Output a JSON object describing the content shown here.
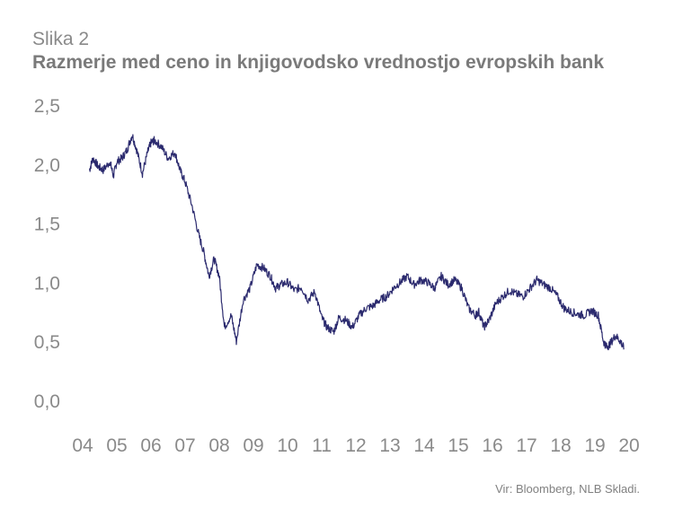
{
  "figure_label": "Slika 2",
  "source": "Vir: Bloomberg, NLB Skladi.",
  "chart_data": {
    "type": "line",
    "title": "Razmerje med ceno in knjigovodsko vrednostjo evropskih bank",
    "xlabel": "",
    "ylabel": "",
    "ylim": [
      0,
      2.5
    ],
    "y_ticks": [
      "0,0",
      "0,5",
      "1,0",
      "1,5",
      "2,0",
      "2,5"
    ],
    "x_ticks": [
      "04",
      "05",
      "06",
      "07",
      "08",
      "09",
      "10",
      "11",
      "12",
      "13",
      "14",
      "15",
      "16",
      "17",
      "18",
      "19",
      "20"
    ],
    "x_range": [
      2004,
      2020
    ],
    "grid": false,
    "line_color": "#2b2a6e",
    "series": [
      {
        "x": [
          2004.2,
          2004.3,
          2004.45,
          2004.6,
          2004.8,
          2004.9,
          2005.0,
          2005.15,
          2005.3,
          2005.45,
          2005.6,
          2005.75,
          2005.9,
          2006.0,
          2006.1,
          2006.3,
          2006.5,
          2006.7,
          2006.85,
          2007.0,
          2007.2,
          2007.4,
          2007.55,
          2007.7,
          2007.85,
          2008.0,
          2008.15,
          2008.35,
          2008.5,
          2008.7,
          2008.9,
          2009.1,
          2009.3,
          2009.5,
          2009.65,
          2009.8,
          2010.0,
          2010.2,
          2010.4,
          2010.6,
          2010.8,
          2011.0,
          2011.15,
          2011.35,
          2011.5,
          2011.7,
          2011.9,
          2012.1,
          2012.3,
          2012.5,
          2012.7,
          2012.9,
          2013.1,
          2013.3,
          2013.5,
          2013.7,
          2013.9,
          2014.1,
          2014.3,
          2014.5,
          2014.7,
          2014.9,
          2015.1,
          2015.3,
          2015.5,
          2015.6,
          2015.75,
          2015.9,
          2016.1,
          2016.3,
          2016.5,
          2016.7,
          2016.9,
          2017.1,
          2017.3,
          2017.5,
          2017.7,
          2017.9,
          2018.1,
          2018.3,
          2018.5,
          2018.7,
          2018.9,
          2019.1,
          2019.25,
          2019.35,
          2019.45,
          2019.6,
          2019.75,
          2019.85
        ],
        "y": [
          1.95,
          2.05,
          1.98,
          1.95,
          2.02,
          1.9,
          2.02,
          2.05,
          2.12,
          2.25,
          2.1,
          1.92,
          2.1,
          2.18,
          2.2,
          2.15,
          2.05,
          2.1,
          1.95,
          1.85,
          1.65,
          1.4,
          1.25,
          1.05,
          1.2,
          1.05,
          0.62,
          0.72,
          0.5,
          0.85,
          0.95,
          1.15,
          1.12,
          1.05,
          0.95,
          0.98,
          1.0,
          0.93,
          0.96,
          0.85,
          0.92,
          0.7,
          0.62,
          0.58,
          0.7,
          0.68,
          0.62,
          0.72,
          0.78,
          0.8,
          0.85,
          0.88,
          0.95,
          1.0,
          1.05,
          0.98,
          1.02,
          1.0,
          0.95,
          1.05,
          0.98,
          1.02,
          0.95,
          0.78,
          0.72,
          0.75,
          0.62,
          0.68,
          0.82,
          0.88,
          0.93,
          0.9,
          0.88,
          0.95,
          1.02,
          0.98,
          0.95,
          0.88,
          0.78,
          0.75,
          0.73,
          0.72,
          0.76,
          0.72,
          0.5,
          0.45,
          0.48,
          0.55,
          0.5,
          0.44
        ]
      }
    ]
  }
}
